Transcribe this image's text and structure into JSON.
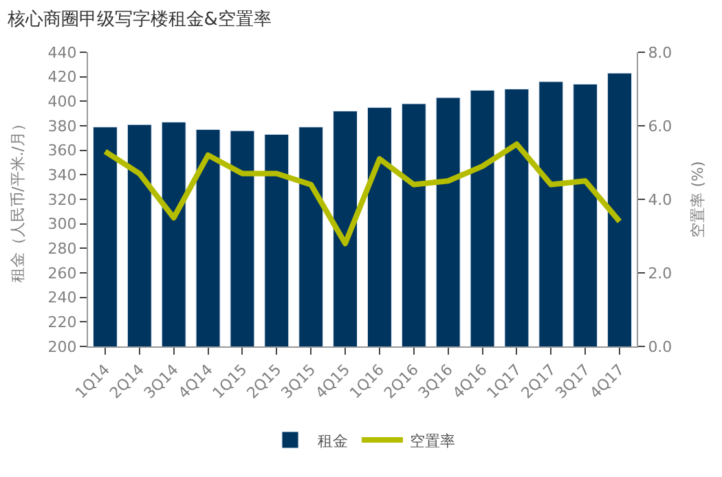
{
  "chart_data": {
    "type": "bar",
    "title": "核心商圈甲级写字楼租金&空置率",
    "ylabel": "租金（人民币/平米./月）",
    "y2label": "空置率 (%)",
    "categories": [
      "1Q14",
      "2Q14",
      "3Q14",
      "4Q14",
      "1Q15",
      "2Q15",
      "3Q15",
      "4Q15",
      "1Q16",
      "2Q16",
      "3Q16",
      "4Q16",
      "1Q17",
      "2Q17",
      "3Q17",
      "4Q17"
    ],
    "series": [
      {
        "name": "租金",
        "color": "#003560",
        "values": [
          379,
          381,
          383,
          377,
          376,
          373,
          379,
          392,
          395,
          398,
          403,
          409,
          410,
          416,
          414,
          423
        ]
      },
      {
        "name": "空置率",
        "type": "line",
        "axis": "y2",
        "color": "#b5bd00",
        "values": [
          5.3,
          4.7,
          3.5,
          5.2,
          4.7,
          4.7,
          4.4,
          2.8,
          5.1,
          4.4,
          4.5,
          4.9,
          5.5,
          4.4,
          4.5,
          3.4
        ]
      }
    ],
    "ylim": [
      200,
      440
    ],
    "yticks": [
      200,
      220,
      240,
      260,
      280,
      300,
      320,
      340,
      360,
      380,
      400,
      420,
      440
    ],
    "y2lim": [
      0,
      8
    ],
    "y2ticks": [
      {
        "value": 0,
        "label": "0.0"
      },
      {
        "value": 2,
        "label": "2.0"
      },
      {
        "value": 4,
        "label": "4.0"
      },
      {
        "value": 6,
        "label": "6.0"
      },
      {
        "value": 8,
        "label": "8.0"
      }
    ],
    "legend": "bottom",
    "marker": "none",
    "line_style": "solid"
  }
}
